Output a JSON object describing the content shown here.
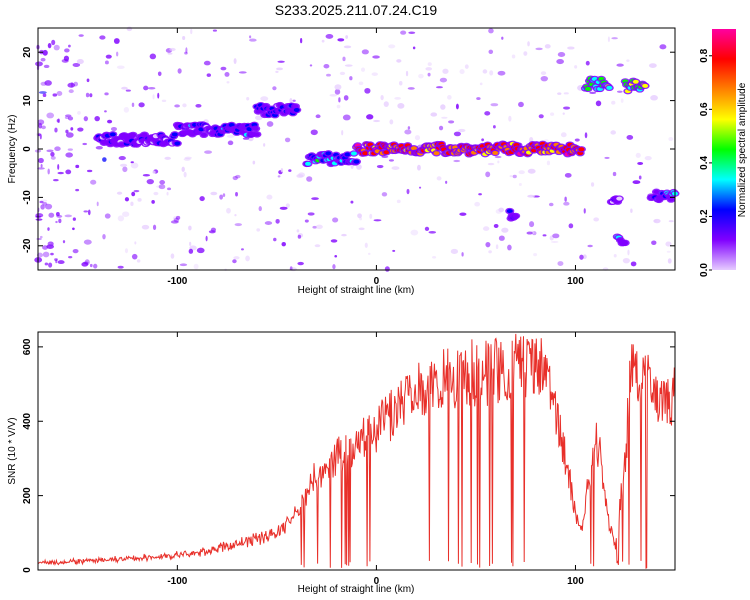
{
  "title": "S233.2025.211.07.24.C19",
  "colors": {
    "snr_line": "#e8302a",
    "colormap": [
      "#e6ccff",
      "#8000ff",
      "#0000ff",
      "#00ffff",
      "#00ff00",
      "#ffff00",
      "#ff8000",
      "#ff0000",
      "#ff00a0"
    ]
  },
  "chart_data": [
    {
      "type": "heatmap",
      "title": "S233.2025.211.07.24.C19",
      "xlabel": "Height of straight line (km)",
      "ylabel": "Frequency (Hz)",
      "xlim": [
        -170,
        150
      ],
      "ylim": [
        -25,
        25
      ],
      "x_ticks": [
        "-100",
        "0",
        "100"
      ],
      "y_ticks": [
        "20",
        "10",
        "0",
        "-10",
        "-20"
      ],
      "colorbar": {
        "label": "Normalized spectral amplitude",
        "range": [
          0.0,
          0.9
        ],
        "ticks": [
          "0.0",
          "0.2",
          "0.4",
          "0.6",
          "0.8"
        ]
      },
      "features": [
        {
          "x_range": [
            -140,
            -100
          ],
          "freq_hz": 2,
          "amplitude": 0.25
        },
        {
          "x_range": [
            -100,
            -60
          ],
          "freq_hz": 4,
          "amplitude": 0.3
        },
        {
          "x_range": [
            -60,
            -40
          ],
          "freq_hz": 8,
          "amplitude": 0.3
        },
        {
          "x_range": [
            -35,
            -10
          ],
          "freq_hz": -2,
          "amplitude": 0.4
        },
        {
          "x_range": [
            -10,
            103
          ],
          "freq_hz": 0,
          "amplitude": 0.85
        },
        {
          "x_range": [
            105,
            117
          ],
          "freq_hz": 13.5,
          "amplitude": 0.55
        },
        {
          "x_range": [
            125,
            135
          ],
          "freq_hz": 13,
          "amplitude": 0.6
        },
        {
          "x_range": [
            118,
            122
          ],
          "freq_hz": -11,
          "amplitude": 0.3
        },
        {
          "x_range": [
            121,
            125
          ],
          "freq_hz": -19,
          "amplitude": 0.35
        },
        {
          "x_range": [
            138,
            150
          ],
          "freq_hz": -9.5,
          "amplitude": 0.35
        },
        {
          "x_range": [
            67,
            70
          ],
          "freq_hz": -13.5,
          "amplitude": 0.3
        }
      ]
    },
    {
      "type": "line",
      "xlabel": "Height of straight line (km)",
      "ylabel": "SNR (10 * V/V)",
      "xlim": [
        -170,
        150
      ],
      "ylim": [
        0,
        640
      ],
      "x_ticks": [
        "-100",
        "0",
        "100"
      ],
      "y_ticks": [
        "0",
        "200",
        "400",
        "600"
      ],
      "series": [
        {
          "x": [
            -170,
            -140,
            -110,
            -90,
            -70,
            -50,
            -40,
            -35,
            -30,
            -20,
            -10,
            0,
            10,
            20,
            30,
            40,
            50,
            60,
            70,
            80,
            85,
            90,
            95,
            100,
            103,
            105,
            108,
            110,
            113,
            116,
            120,
            125,
            128,
            132,
            136,
            140,
            145,
            150
          ],
          "values": [
            20,
            25,
            35,
            45,
            70,
            100,
            150,
            210,
            260,
            300,
            330,
            380,
            430,
            470,
            500,
            520,
            530,
            535,
            540,
            560,
            530,
            420,
            300,
            150,
            110,
            180,
            290,
            350,
            300,
            150,
            60,
            300,
            550,
            540,
            500,
            480,
            460,
            470
          ]
        }
      ]
    }
  ]
}
